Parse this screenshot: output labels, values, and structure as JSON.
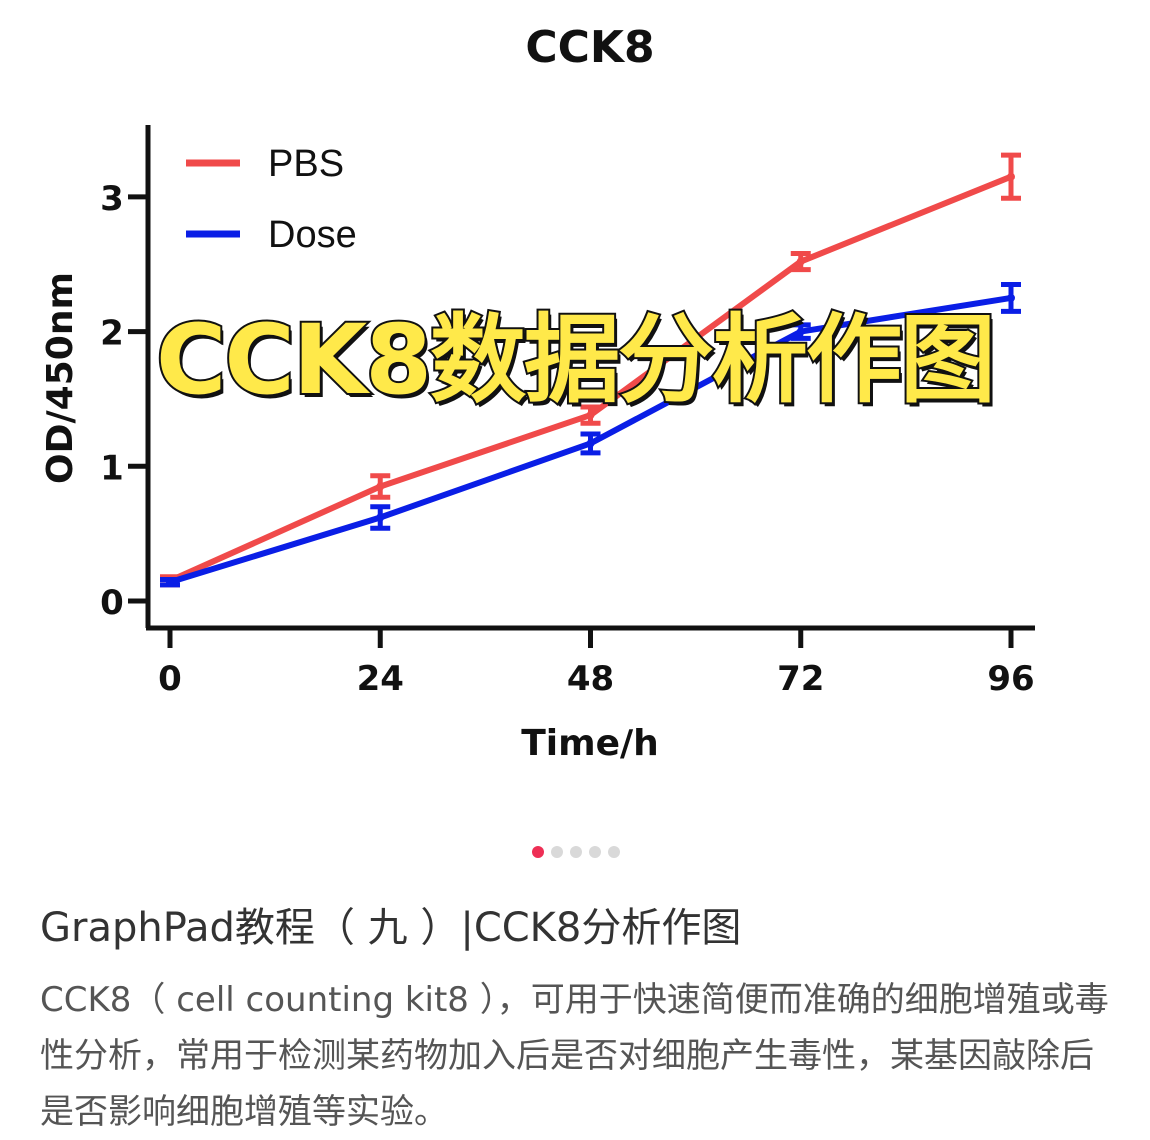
{
  "chart_data": {
    "type": "line",
    "title": "CCK8",
    "xlabel": "Time/h",
    "ylabel": "OD/450nm",
    "x": [
      0,
      24,
      48,
      72,
      96
    ],
    "xticks": [
      "0",
      "24",
      "48",
      "72",
      "96"
    ],
    "yticks": [
      "0",
      "1",
      "2",
      "3"
    ],
    "xlim": [
      0,
      96
    ],
    "ylim": [
      0,
      3.4
    ],
    "legend_position": "top-left",
    "series": [
      {
        "name": "PBS",
        "color": "#f04a4a",
        "values": [
          0.15,
          0.85,
          1.38,
          2.52,
          3.15
        ],
        "error": [
          0.03,
          0.08,
          0.06,
          0.06,
          0.16
        ]
      },
      {
        "name": "Dose",
        "color": "#0a1ee6",
        "values": [
          0.14,
          0.62,
          1.17,
          2.0,
          2.25
        ],
        "error": [
          0.02,
          0.08,
          0.07,
          0.05,
          0.1
        ]
      }
    ]
  },
  "overlay_title": "CCK8数据分析作图",
  "carousel": {
    "count": 5,
    "active": 0,
    "active_color": "#ee2f55"
  },
  "post": {
    "title": "GraphPad教程（ 九 ）|CCK8分析作图",
    "body": "CCK8（ cell counting kit8 ），可用于快速简便而准确的细胞增殖或毒性分析，常用于检测某药物加入后是否对细胞产生毒性，某基因敲除后是否影响细胞增殖等实验。"
  }
}
